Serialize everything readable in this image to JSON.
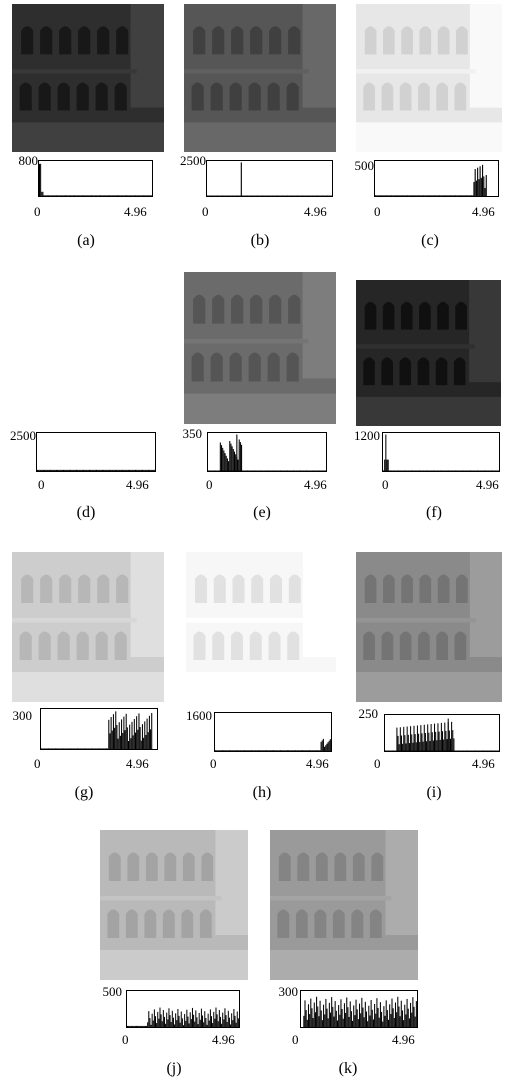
{
  "figure": {
    "panels": [
      {
        "id": "a",
        "caption": "(a)",
        "ymax": "800",
        "xmin": "0",
        "xmax": "4.96",
        "tone": "#2e2e2e",
        "hist": "spike_left"
      },
      {
        "id": "b",
        "caption": "(b)",
        "ymax": "2500",
        "xmin": "0",
        "xmax": "4.96",
        "tone": "#565656",
        "hist": "spike_mid"
      },
      {
        "id": "c",
        "caption": "(c)",
        "ymax": "500",
        "xmin": "0",
        "xmax": "4.96",
        "tone": "#e7e7e7",
        "hist": "spike_right"
      },
      {
        "id": "d",
        "caption": "(d)",
        "ymax": "2500",
        "xmin": "0",
        "xmax": "4.96",
        "tone": "#ffffff",
        "hist": "flat"
      },
      {
        "id": "e",
        "caption": "(e)",
        "ymax": "350",
        "xmin": "0",
        "xmax": "4.96",
        "tone": "#6b6b6b",
        "hist": "band_e"
      },
      {
        "id": "f",
        "caption": "(f)",
        "ymax": "1200",
        "xmin": "0",
        "xmax": "4.96",
        "tone": "#262626",
        "hist": "spike_f"
      },
      {
        "id": "g",
        "caption": "(g)",
        "ymax": "300",
        "xmin": "0",
        "xmax": "4.96",
        "tone": "#cdcdcd",
        "hist": "band_g"
      },
      {
        "id": "h",
        "caption": "(h)",
        "ymax": "1600",
        "xmin": "0",
        "xmax": "4.96",
        "tone": "#f7f7f7",
        "hist": "tail_h"
      },
      {
        "id": "i",
        "caption": "(i)",
        "ymax": "250",
        "xmin": "0",
        "xmax": "4.96",
        "tone": "#8a8a8a",
        "hist": "band_i"
      },
      {
        "id": "j",
        "caption": "(j)",
        "ymax": "500",
        "xmin": "0",
        "xmax": "4.96",
        "tone": "#b9b9b9",
        "hist": "spread_j"
      },
      {
        "id": "k",
        "caption": "(k)",
        "ymax": "300",
        "xmin": "0",
        "xmax": "4.96",
        "tone": "#9a9a9a",
        "hist": "spread_k"
      }
    ]
  }
}
